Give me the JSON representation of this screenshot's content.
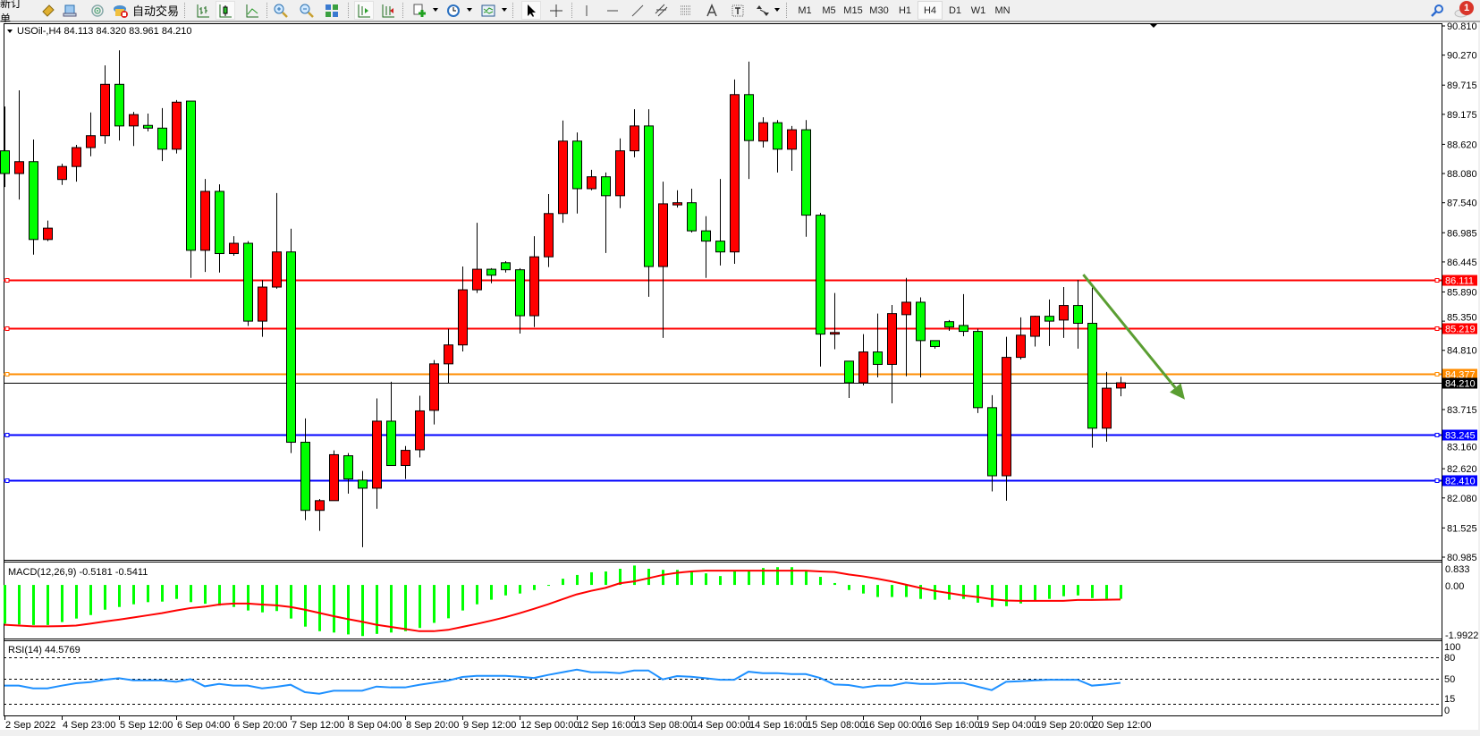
{
  "toolbar": {
    "new_order_label": "新订单",
    "auto_trading_label": "自动交易",
    "timeframes": [
      "M1",
      "M5",
      "M15",
      "M30",
      "H1",
      "H4",
      "D1",
      "W1",
      "MN"
    ],
    "active_timeframe": "H4",
    "notification_count": "1"
  },
  "chart": {
    "header": "USOil-,H4  84.113 84.320 83.961 84.210",
    "macd_label": "MACD(12,26,9) -0.5181 -0.5411",
    "rsi_label": "RSI(14) 44.5769"
  },
  "colors": {
    "bull_candle": "#ff0000",
    "bear_candle": "#00ff00",
    "macd_histogram": "#00ff00",
    "macd_signal": "#ff0000",
    "rsi_line": "#1e90ff",
    "arrow": "#5a9e32",
    "resistance": "#ff0000",
    "pivot": "#ff8c00",
    "support": "#0000ff",
    "bid": "#000000"
  },
  "chart_data": [
    {
      "type": "candlestick",
      "symbol": "USOil-,H4",
      "ylim": [
        80.985,
        90.81
      ],
      "price_axis_ticks": [
        "90.810",
        "90.270",
        "89.715",
        "89.175",
        "88.620",
        "88.080",
        "87.540",
        "86.985",
        "86.445",
        "85.890",
        "85.350",
        "84.810",
        "83.715",
        "83.160",
        "82.620",
        "82.080",
        "81.525",
        "80.985"
      ],
      "ohlc": [
        [
          88.5,
          89.32,
          87.83,
          88.08
        ],
        [
          88.08,
          89.62,
          87.6,
          88.3
        ],
        [
          88.3,
          88.71,
          86.58,
          86.86
        ],
        [
          86.86,
          87.21,
          86.83,
          87.07
        ],
        [
          87.97,
          88.26,
          87.87,
          88.21
        ],
        [
          88.21,
          88.61,
          87.93,
          88.56
        ],
        [
          88.56,
          89.21,
          88.4,
          88.78
        ],
        [
          88.78,
          90.08,
          88.63,
          89.73
        ],
        [
          89.73,
          90.36,
          88.69,
          88.96
        ],
        [
          88.96,
          89.22,
          88.59,
          89.17
        ],
        [
          88.97,
          89.19,
          88.86,
          88.92
        ],
        [
          88.92,
          89.29,
          88.31,
          88.53
        ],
        [
          88.53,
          89.44,
          88.45,
          89.4
        ],
        [
          89.42,
          89.42,
          86.15,
          86.66
        ],
        [
          86.66,
          87.98,
          86.26,
          87.75
        ],
        [
          87.75,
          87.88,
          86.25,
          86.6
        ],
        [
          86.6,
          86.92,
          86.56,
          86.79
        ],
        [
          86.79,
          86.83,
          85.26,
          85.35
        ],
        [
          85.35,
          86.11,
          85.06,
          85.98
        ],
        [
          85.98,
          87.72,
          85.95,
          86.63
        ],
        [
          86.63,
          87.06,
          82.91,
          83.11
        ],
        [
          83.11,
          83.55,
          81.67,
          81.85
        ],
        [
          81.85,
          82.06,
          81.47,
          82.03
        ],
        [
          82.03,
          82.96,
          82.03,
          82.88
        ],
        [
          82.86,
          82.91,
          82.16,
          82.43
        ],
        [
          82.41,
          82.58,
          81.17,
          82.26
        ],
        [
          82.26,
          83.92,
          81.88,
          83.5
        ],
        [
          83.5,
          84.23,
          82.68,
          82.68
        ],
        [
          82.68,
          83.04,
          82.43,
          82.96
        ],
        [
          82.97,
          83.97,
          82.83,
          83.69
        ],
        [
          83.7,
          84.63,
          83.44,
          84.56
        ],
        [
          84.56,
          85.21,
          84.21,
          84.91
        ],
        [
          84.91,
          86.36,
          84.79,
          85.93
        ],
        [
          85.93,
          87.17,
          85.87,
          86.31
        ],
        [
          86.31,
          86.33,
          86.05,
          86.2
        ],
        [
          86.43,
          86.46,
          86.25,
          86.3
        ],
        [
          86.3,
          86.33,
          85.12,
          85.45
        ],
        [
          85.45,
          86.92,
          85.24,
          86.54
        ],
        [
          86.54,
          87.7,
          86.35,
          87.34
        ],
        [
          87.34,
          89.06,
          87.17,
          88.68
        ],
        [
          88.68,
          88.84,
          87.34,
          87.8
        ],
        [
          87.8,
          88.15,
          87.77,
          88.02
        ],
        [
          88.02,
          88.1,
          86.61,
          87.67
        ],
        [
          87.67,
          88.73,
          87.44,
          88.5
        ],
        [
          88.5,
          89.27,
          88.38,
          88.96
        ],
        [
          88.96,
          89.27,
          85.8,
          86.36
        ],
        [
          86.36,
          87.93,
          85.04,
          87.52
        ],
        [
          87.5,
          87.77,
          87.45,
          87.54
        ],
        [
          87.54,
          87.8,
          86.99,
          87.02
        ],
        [
          87.02,
          87.29,
          86.15,
          86.83
        ],
        [
          86.83,
          87.98,
          86.38,
          86.63
        ],
        [
          86.63,
          89.82,
          86.41,
          89.54
        ],
        [
          89.54,
          90.15,
          87.98,
          88.69
        ],
        [
          88.68,
          89.12,
          88.56,
          89.02
        ],
        [
          89.02,
          89.07,
          88.1,
          88.53
        ],
        [
          88.53,
          88.96,
          88.13,
          88.89
        ],
        [
          88.89,
          89.07,
          86.91,
          87.31
        ],
        [
          87.31,
          87.35,
          84.51,
          85.11
        ],
        [
          85.11,
          85.87,
          84.83,
          85.14
        ],
        [
          84.61,
          84.61,
          83.93,
          84.21
        ],
        [
          84.21,
          85.11,
          84.16,
          84.78
        ],
        [
          84.78,
          85.49,
          84.31,
          84.55
        ],
        [
          84.55,
          85.65,
          83.83,
          85.49
        ],
        [
          85.47,
          86.15,
          84.33,
          85.7
        ],
        [
          85.7,
          85.79,
          84.31,
          84.99
        ],
        [
          84.99,
          84.99,
          84.84,
          84.88
        ],
        [
          85.34,
          85.37,
          85.17,
          85.24
        ],
        [
          85.27,
          85.85,
          85.07,
          85.16
        ],
        [
          85.16,
          85.21,
          83.65,
          83.75
        ],
        [
          83.75,
          83.98,
          82.2,
          82.49
        ],
        [
          82.49,
          85.06,
          82.03,
          84.68
        ],
        [
          84.68,
          85.42,
          84.64,
          85.09
        ],
        [
          85.07,
          85.45,
          84.88,
          85.44
        ],
        [
          85.44,
          85.75,
          84.89,
          85.35
        ],
        [
          85.37,
          85.98,
          85.04,
          85.64
        ],
        [
          85.64,
          86.11,
          84.84,
          85.31
        ],
        [
          85.31,
          85.97,
          83.01,
          83.37
        ],
        [
          83.37,
          84.41,
          83.12,
          84.11
        ],
        [
          84.113,
          84.32,
          83.961,
          84.21
        ]
      ],
      "horizontal_lines": [
        {
          "price": 86.111,
          "label": "86.111",
          "kind": "resistance"
        },
        {
          "price": 85.219,
          "label": "85.219",
          "kind": "resistance"
        },
        {
          "price": 84.377,
          "label": "84.377",
          "kind": "pivot"
        },
        {
          "price": 84.21,
          "label": "84.210",
          "kind": "bid"
        },
        {
          "price": 83.245,
          "label": "83.245",
          "kind": "support"
        },
        {
          "price": 82.41,
          "label": "82.410",
          "kind": "support"
        }
      ],
      "time_labels": [
        {
          "candle": 0,
          "label": "2 Sep 2022"
        },
        {
          "candle": 4,
          "label": "4 Sep 23:00"
        },
        {
          "candle": 8,
          "label": "5 Sep 12:00"
        },
        {
          "candle": 12,
          "label": "6 Sep 04:00"
        },
        {
          "candle": 16,
          "label": "6 Sep 20:00"
        },
        {
          "candle": 20,
          "label": "7 Sep 12:00"
        },
        {
          "candle": 24,
          "label": "8 Sep 04:00"
        },
        {
          "candle": 28,
          "label": "8 Sep 20:00"
        },
        {
          "candle": 32,
          "label": "9 Sep 12:00"
        },
        {
          "candle": 36,
          "label": "12 Sep 00:00"
        },
        {
          "candle": 40,
          "label": "12 Sep 16:00"
        },
        {
          "candle": 44,
          "label": "13 Sep 08:00"
        },
        {
          "candle": 48,
          "label": "14 Sep 00:00"
        },
        {
          "candle": 52,
          "label": "14 Sep 16:00"
        },
        {
          "candle": 56,
          "label": "15 Sep 08:00"
        },
        {
          "candle": 60,
          "label": "16 Sep 00:00"
        },
        {
          "candle": 64,
          "label": "16 Sep 16:00"
        },
        {
          "candle": 68,
          "label": "19 Sep 04:00"
        },
        {
          "candle": 72,
          "label": "19 Sep 20:00"
        },
        {
          "candle": 76,
          "label": "20 Sep 12:00"
        }
      ],
      "annotations": [
        {
          "type": "arrow",
          "from": {
            "candle": 75.4,
            "price": 86.21
          },
          "to": {
            "candle": 82.5,
            "price": 83.9
          }
        }
      ]
    },
    {
      "type": "bar+line",
      "indicator": "MACD(12,26,9)",
      "ylim": [
        -1.9922,
        0.833
      ],
      "axis_ticks": [
        "0.833",
        "0.00",
        "-1.9922"
      ],
      "histogram": [
        -1.44,
        -1.47,
        -1.49,
        -1.49,
        -1.38,
        -1.25,
        -1.12,
        -0.92,
        -0.82,
        -0.72,
        -0.64,
        -0.62,
        -0.52,
        -0.64,
        -0.7,
        -0.77,
        -0.82,
        -0.95,
        -1.02,
        -0.97,
        -1.25,
        -1.55,
        -1.72,
        -1.77,
        -1.84,
        -1.9,
        -1.82,
        -1.77,
        -1.72,
        -1.6,
        -1.41,
        -1.24,
        -0.95,
        -0.72,
        -0.55,
        -0.39,
        -0.32,
        -0.19,
        -0.02,
        0.23,
        0.37,
        0.47,
        0.5,
        0.6,
        0.72,
        0.6,
        0.56,
        0.56,
        0.5,
        0.43,
        0.33,
        0.5,
        0.5,
        0.63,
        0.66,
        0.66,
        0.5,
        0.3,
        0.07,
        -0.19,
        -0.32,
        -0.45,
        -0.45,
        -0.45,
        -0.52,
        -0.55,
        -0.55,
        -0.52,
        -0.66,
        -0.82,
        -0.79,
        -0.69,
        -0.58,
        -0.52,
        -0.42,
        -0.39,
        -0.49,
        -0.52,
        -0.5181
      ],
      "signal": [
        -1.48,
        -1.51,
        -1.54,
        -1.54,
        -1.53,
        -1.51,
        -1.44,
        -1.36,
        -1.29,
        -1.21,
        -1.13,
        -1.05,
        -0.95,
        -0.86,
        -0.81,
        -0.73,
        -0.69,
        -0.69,
        -0.73,
        -0.76,
        -0.82,
        -0.92,
        -1.04,
        -1.16,
        -1.27,
        -1.37,
        -1.48,
        -1.56,
        -1.64,
        -1.72,
        -1.72,
        -1.67,
        -1.56,
        -1.45,
        -1.33,
        -1.2,
        -1.05,
        -0.89,
        -0.72,
        -0.53,
        -0.35,
        -0.22,
        -0.11,
        0.06,
        0.13,
        0.25,
        0.37,
        0.45,
        0.5,
        0.53,
        0.53,
        0.53,
        0.53,
        0.53,
        0.53,
        0.53,
        0.53,
        0.5,
        0.48,
        0.39,
        0.32,
        0.23,
        0.13,
        0.01,
        -0.11,
        -0.22,
        -0.3,
        -0.39,
        -0.45,
        -0.53,
        -0.58,
        -0.59,
        -0.59,
        -0.59,
        -0.59,
        -0.56,
        -0.56,
        -0.55,
        -0.5411
      ]
    },
    {
      "type": "line",
      "indicator": "RSI(14)",
      "ylim": [
        0,
        100
      ],
      "axis_ticks": [
        "100",
        "80",
        "50",
        "15",
        "0"
      ],
      "levels": [
        80,
        50,
        15
      ],
      "values": [
        40.7,
        40.7,
        36.9,
        36.9,
        40.7,
        44.0,
        45.6,
        48.9,
        51.0,
        48.1,
        48.1,
        48.1,
        46.0,
        49.8,
        39.8,
        43.1,
        40.7,
        40.7,
        36.9,
        39.0,
        41.9,
        31.6,
        29.5,
        33.6,
        33.6,
        33.6,
        39.4,
        38.2,
        38.2,
        41.9,
        44.8,
        47.7,
        52.7,
        54.3,
        54.3,
        54.3,
        53.1,
        51.4,
        55.6,
        59.3,
        63.0,
        59.3,
        59.3,
        58.1,
        61.8,
        61.8,
        49.4,
        53.9,
        53.1,
        51.0,
        48.9,
        48.9,
        60.1,
        58.1,
        58.1,
        56.8,
        56.8,
        51.4,
        42.3,
        41.5,
        38.2,
        40.7,
        40.7,
        44.8,
        43.1,
        43.1,
        44.4,
        44.4,
        39.4,
        34.5,
        46.0,
        46.9,
        48.1,
        48.9,
        48.9,
        48.9,
        40.7,
        42.3,
        44.5769
      ]
    }
  ]
}
